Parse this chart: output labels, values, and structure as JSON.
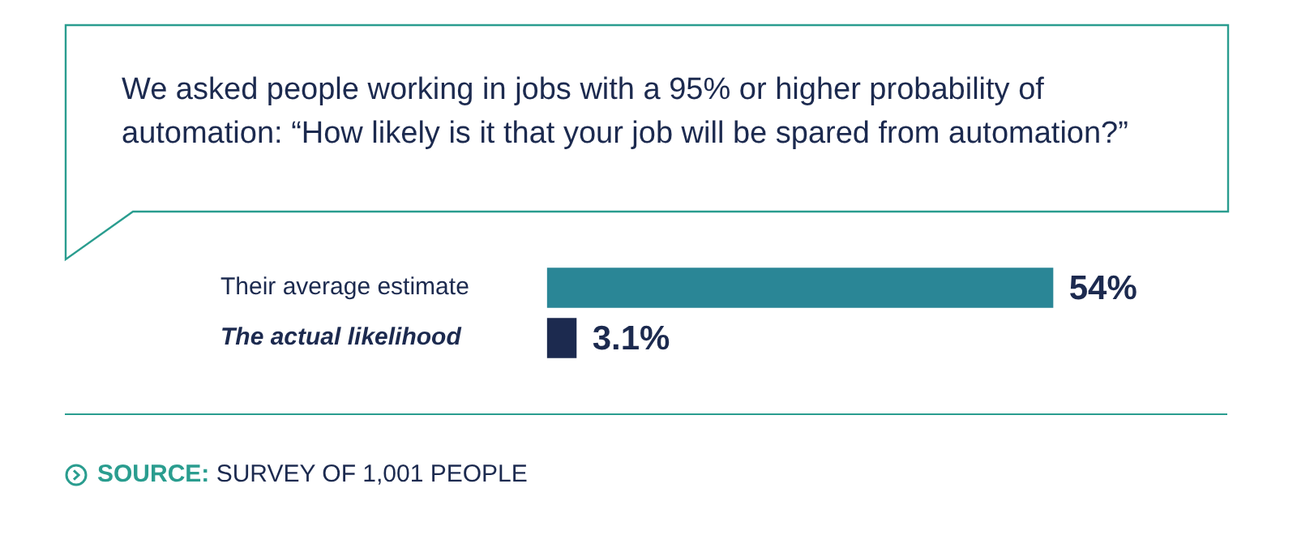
{
  "chart_data": {
    "type": "bar",
    "orientation": "horizontal",
    "title": "We asked people working in jobs with a 95% or higher probability of automation: “How likely is it that your job will be spared from automation?”",
    "categories": [
      "Their average estimate",
      "The actual likelihood"
    ],
    "values": [
      54,
      3.1
    ],
    "value_labels": [
      "54%",
      "3.1%"
    ],
    "colors": [
      "#2a8696",
      "#1c2a4f"
    ],
    "tick_labels": "y",
    "legend": false,
    "annotations": [
      "SOURCE: SURVEY OF 1,001 PEOPLE"
    ]
  }
}
